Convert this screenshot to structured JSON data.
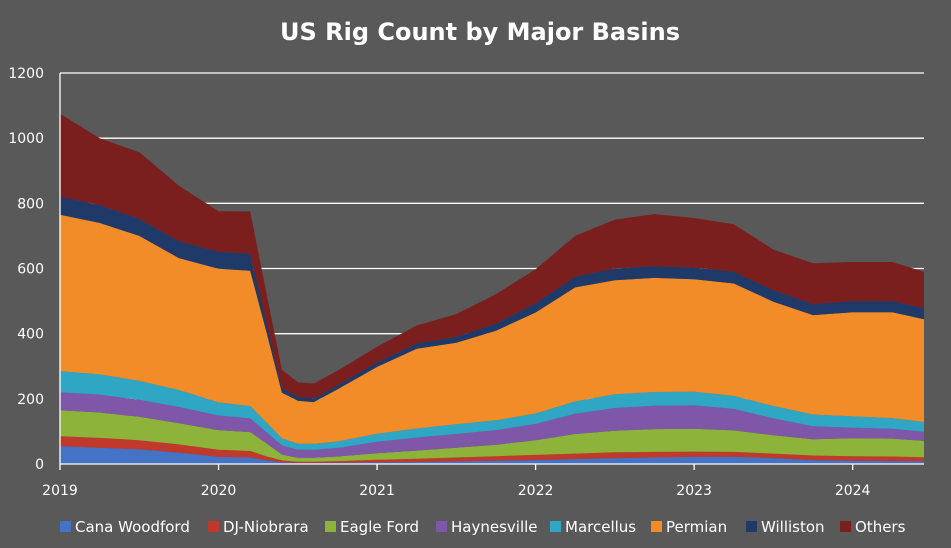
{
  "chart_data": {
    "type": "area",
    "stacked": true,
    "title": "US Rig Count by Major Basins",
    "xlabel": "",
    "ylabel": "",
    "x_ticks": [
      "2019",
      "2020",
      "2021",
      "2022",
      "2023",
      "2024"
    ],
    "y_ticks": [
      "0",
      "200",
      "400",
      "600",
      "800",
      "1000",
      "1200"
    ],
    "xlim": [
      2019.0,
      2024.45
    ],
    "ylim": [
      0,
      1200
    ],
    "grid": "horizontal",
    "legend_position": "bottom",
    "x": [
      2019.0,
      2019.25,
      2019.5,
      2019.75,
      2020.0,
      2020.2,
      2020.3,
      2020.4,
      2020.5,
      2020.6,
      2020.75,
      2021.0,
      2021.25,
      2021.5,
      2021.75,
      2022.0,
      2022.25,
      2022.5,
      2022.75,
      2023.0,
      2023.25,
      2023.5,
      2023.75,
      2024.0,
      2024.25,
      2024.45
    ],
    "series": [
      {
        "name": "Cana Woodford",
        "color": "#4472C4",
        "values": [
          55,
          50,
          45,
          35,
          22,
          20,
          12,
          5,
          3,
          3,
          4,
          5,
          6,
          8,
          10,
          12,
          15,
          18,
          20,
          22,
          22,
          18,
          12,
          10,
          9,
          8
        ]
      },
      {
        "name": "DJ-Niobrara",
        "color": "#C0392B",
        "values": [
          30,
          30,
          28,
          25,
          22,
          20,
          12,
          6,
          4,
          4,
          5,
          8,
          10,
          12,
          14,
          16,
          17,
          18,
          17,
          16,
          15,
          14,
          14,
          14,
          14,
          13
        ]
      },
      {
        "name": "Eagle Ford",
        "color": "#8DB33A",
        "values": [
          80,
          78,
          72,
          65,
          60,
          58,
          40,
          18,
          12,
          12,
          14,
          20,
          25,
          30,
          35,
          45,
          60,
          66,
          70,
          70,
          66,
          56,
          50,
          55,
          55,
          50
        ]
      },
      {
        "name": "Haynesville",
        "color": "#7E57A8",
        "values": [
          55,
          55,
          52,
          50,
          45,
          42,
          35,
          28,
          25,
          25,
          26,
          35,
          40,
          42,
          45,
          50,
          62,
          70,
          72,
          72,
          66,
          52,
          40,
          32,
          30,
          28
        ]
      },
      {
        "name": "Marcellus",
        "color": "#2EA6C4",
        "values": [
          65,
          62,
          58,
          52,
          40,
          38,
          30,
          22,
          18,
          18,
          20,
          25,
          28,
          30,
          30,
          32,
          38,
          42,
          42,
          42,
          40,
          38,
          36,
          35,
          33,
          30
        ]
      },
      {
        "name": "Permian",
        "color": "#F28C28",
        "values": [
          480,
          465,
          445,
          405,
          410,
          415,
          280,
          140,
          132,
          128,
          160,
          205,
          245,
          250,
          275,
          310,
          350,
          350,
          350,
          345,
          345,
          320,
          305,
          320,
          325,
          315
        ]
      },
      {
        "name": "Williston",
        "color": "#1F3A68",
        "values": [
          55,
          55,
          52,
          52,
          52,
          52,
          30,
          15,
          12,
          12,
          12,
          14,
          16,
          18,
          22,
          28,
          33,
          36,
          36,
          36,
          36,
          35,
          34,
          34,
          34,
          34
        ]
      },
      {
        "name": "Others",
        "color": "#7A1E1E",
        "values": [
          255,
          205,
          205,
          170,
          125,
          130,
          90,
          55,
          45,
          45,
          45,
          48,
          55,
          70,
          90,
          105,
          125,
          150,
          160,
          152,
          146,
          125,
          125,
          120,
          120,
          112
        ]
      }
    ]
  }
}
